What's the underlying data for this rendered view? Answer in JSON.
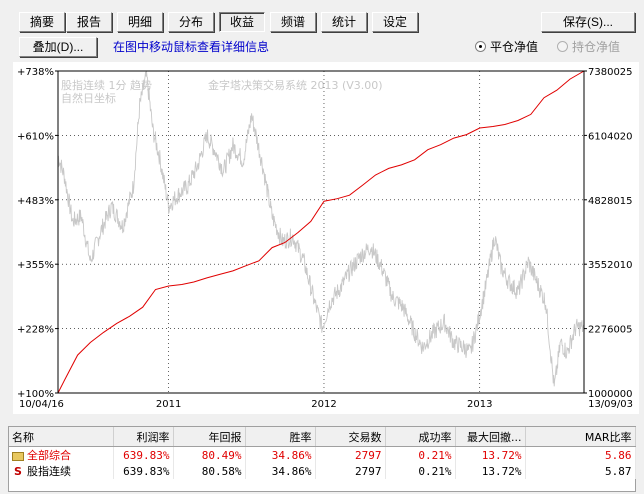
{
  "toolbar": {
    "tabs": [
      {
        "label": "摘要",
        "active": false
      },
      {
        "label": "报告",
        "active": false
      },
      {
        "label": "明细",
        "active": false
      },
      {
        "label": "分布",
        "active": false
      },
      {
        "label": "收益",
        "active": true
      },
      {
        "label": "频谱",
        "active": false
      },
      {
        "label": "统计",
        "active": false
      },
      {
        "label": "设定",
        "active": false
      }
    ],
    "save_label": "保存(S)...",
    "overlay_label": "叠加(D)...",
    "hint": "在图中移动鼠标查看详细信息",
    "radio_net": "平仓净值",
    "radio_hold": "持仓净值"
  },
  "chart_data": {
    "type": "line",
    "watermark_left_1": "股指连续 1分 趋势",
    "watermark_left_2": "自然日坐标",
    "watermark_center": "金字塔决策交易系统 2013 (V3.00)",
    "left_axis_labels": [
      "+738%",
      "+610%",
      "+483%",
      "+355%",
      "+228%",
      "+100%"
    ],
    "right_axis_labels": [
      "7380025",
      "6104020",
      "4828015",
      "3552010",
      "2276005",
      "1000000"
    ],
    "x_labels": [
      "10/04/16",
      "2011",
      "2012",
      "2013",
      "13/09/03"
    ],
    "x_range": [
      "2010-04-16",
      "2013-09-03"
    ],
    "ylim_pct": [
      100,
      738
    ],
    "ylim_price": [
      1000000,
      7380025
    ],
    "grid": true,
    "series": [
      {
        "color": "#e00000",
        "axis": "left",
        "points": [
          [
            "2010-04-16",
            100
          ],
          [
            "2010-05-01",
            125
          ],
          [
            "2010-06-01",
            175
          ],
          [
            "2010-07-01",
            200
          ],
          [
            "2010-08-01",
            220
          ],
          [
            "2010-09-01",
            238
          ],
          [
            "2010-10-01",
            252
          ],
          [
            "2010-11-01",
            270
          ],
          [
            "2010-12-01",
            305
          ],
          [
            "2011-01-01",
            312
          ],
          [
            "2011-02-01",
            315
          ],
          [
            "2011-03-01",
            320
          ],
          [
            "2011-04-01",
            328
          ],
          [
            "2011-05-01",
            335
          ],
          [
            "2011-06-01",
            342
          ],
          [
            "2011-07-01",
            352
          ],
          [
            "2011-08-01",
            362
          ],
          [
            "2011-09-01",
            388
          ],
          [
            "2011-10-01",
            398
          ],
          [
            "2011-11-01",
            418
          ],
          [
            "2011-12-01",
            440
          ],
          [
            "2012-01-01",
            480
          ],
          [
            "2012-02-01",
            485
          ],
          [
            "2012-03-01",
            492
          ],
          [
            "2012-04-01",
            512
          ],
          [
            "2012-05-01",
            532
          ],
          [
            "2012-06-01",
            545
          ],
          [
            "2012-07-01",
            552
          ],
          [
            "2012-08-01",
            562
          ],
          [
            "2012-09-01",
            582
          ],
          [
            "2012-10-01",
            592
          ],
          [
            "2012-11-01",
            605
          ],
          [
            "2012-12-01",
            612
          ],
          [
            "2013-01-01",
            625
          ],
          [
            "2013-02-01",
            628
          ],
          [
            "2013-03-01",
            632
          ],
          [
            "2013-04-01",
            640
          ],
          [
            "2013-05-01",
            652
          ],
          [
            "2013-06-01",
            685
          ],
          [
            "2013-07-01",
            700
          ],
          [
            "2013-08-01",
            722
          ],
          [
            "2013-09-03",
            738
          ]
        ]
      },
      {
        "color": "#c8c8c8",
        "axis": "right",
        "points": [
          [
            "2010-04-16",
            5700000
          ],
          [
            "2010-05-01",
            5300000
          ],
          [
            "2010-05-20",
            4400000
          ],
          [
            "2010-06-10",
            4500000
          ],
          [
            "2010-07-01",
            3600000
          ],
          [
            "2010-07-25",
            4200000
          ],
          [
            "2010-08-20",
            4700000
          ],
          [
            "2010-09-15",
            4300000
          ],
          [
            "2010-10-10",
            5100000
          ],
          [
            "2010-10-25",
            6700000
          ],
          [
            "2010-11-10",
            7300000
          ],
          [
            "2010-11-25",
            6200000
          ],
          [
            "2010-12-10",
            5700000
          ],
          [
            "2011-01-01",
            4700000
          ],
          [
            "2011-01-20",
            4900000
          ],
          [
            "2011-02-15",
            5100000
          ],
          [
            "2011-03-10",
            5500000
          ],
          [
            "2011-04-01",
            6100000
          ],
          [
            "2011-04-20",
            5800000
          ],
          [
            "2011-05-10",
            5400000
          ],
          [
            "2011-06-01",
            5900000
          ],
          [
            "2011-06-25",
            5600000
          ],
          [
            "2011-07-15",
            6500000
          ],
          [
            "2011-08-10",
            5500000
          ],
          [
            "2011-09-01",
            4500000
          ],
          [
            "2011-09-25",
            4000000
          ],
          [
            "2011-10-20",
            4100000
          ],
          [
            "2011-11-15",
            3600000
          ],
          [
            "2011-12-10",
            2800000
          ],
          [
            "2011-12-28",
            2300000
          ],
          [
            "2012-01-15",
            2800000
          ],
          [
            "2012-02-10",
            3100000
          ],
          [
            "2012-03-01",
            3400000
          ],
          [
            "2012-03-25",
            3700000
          ],
          [
            "2012-04-20",
            3900000
          ],
          [
            "2012-05-15",
            3500000
          ],
          [
            "2012-06-10",
            2900000
          ],
          [
            "2012-07-05",
            2700000
          ],
          [
            "2012-08-01",
            2200000
          ],
          [
            "2012-08-20",
            1900000
          ],
          [
            "2012-09-15",
            2200000
          ],
          [
            "2012-10-10",
            2400000
          ],
          [
            "2012-11-01",
            2000000
          ],
          [
            "2012-11-25",
            1900000
          ],
          [
            "2012-12-10",
            1800000
          ],
          [
            "2012-12-25",
            2300000
          ],
          [
            "2013-01-15",
            3100000
          ],
          [
            "2013-02-05",
            4100000
          ],
          [
            "2013-02-20",
            3500000
          ],
          [
            "2013-03-10",
            3200000
          ],
          [
            "2013-04-01",
            3000000
          ],
          [
            "2013-04-25",
            3600000
          ],
          [
            "2013-05-15",
            3200000
          ],
          [
            "2013-06-05",
            2800000
          ],
          [
            "2013-06-25",
            1100000
          ],
          [
            "2013-07-10",
            2000000
          ],
          [
            "2013-07-25",
            1800000
          ],
          [
            "2013-08-15",
            2300000
          ],
          [
            "2013-09-03",
            2300000
          ]
        ]
      }
    ]
  },
  "table": {
    "headers": [
      "名称",
      "利润率",
      "年回报",
      "胜率",
      "交易数",
      "成功率",
      "最大回撤...",
      "MAR比率"
    ],
    "rows": [
      {
        "name": "全部综合",
        "icon": "folder-icon",
        "values": [
          "639.83%",
          "80.49%",
          "34.86%",
          "2797",
          "0.21%",
          "13.72%",
          "5.86"
        ],
        "color": "#e00000"
      },
      {
        "name": "股指连续",
        "icon": "s-icon",
        "values": [
          "639.83%",
          "80.58%",
          "34.86%",
          "2797",
          "0.21%",
          "13.72%",
          "5.87"
        ],
        "color": "#000000"
      }
    ]
  }
}
